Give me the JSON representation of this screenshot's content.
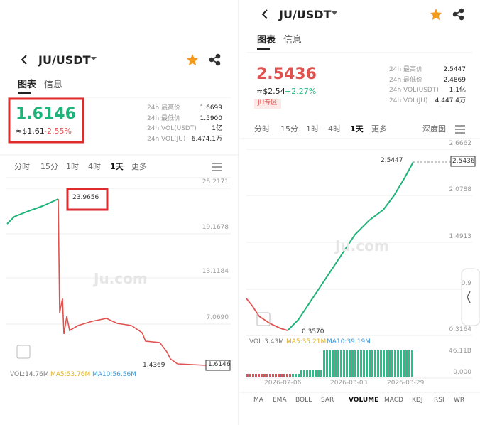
{
  "left": {
    "pair": "JU/USDT",
    "tabs": [
      "图表",
      "信息"
    ],
    "price": "1.6146",
    "usd": "≈$1.61",
    "change": "-2.55%",
    "stats": [
      {
        "label": "24h 最高价",
        "value": "1.6699"
      },
      {
        "label": "24h 最低价",
        "value": "1.5900"
      },
      {
        "label": "24h VOL(USDT)",
        "value": "1亿"
      },
      {
        "label": "24h VOL(JU)",
        "value": "6,474.1万"
      }
    ],
    "timeframes": [
      "分时",
      "15分",
      "1时",
      "4时",
      "1天",
      "更多"
    ],
    "axis": [
      "25.2171",
      "19.1678",
      "13.1184",
      "7.0690"
    ],
    "high_label": "23.9656",
    "low_label": "1.4369",
    "last_label": "1.6146",
    "watermark": "Ju.com",
    "volume": [
      "VOL:14.76M",
      "MA5:53.76M",
      "MA10:56.56M"
    ]
  },
  "right": {
    "pair": "JU/USDT",
    "tabs": [
      "图表",
      "信息"
    ],
    "price": "2.5436",
    "usd": "≈$2.54",
    "change": "+2.27%",
    "tag": "JU专区",
    "stats": [
      {
        "label": "24h 最高价",
        "value": "2.5447"
      },
      {
        "label": "24h 最低价",
        "value": "2.4869"
      },
      {
        "label": "24h VOL(USDT)",
        "value": "1.1亿"
      },
      {
        "label": "24h VOL(JU)",
        "value": "4,447.4万"
      }
    ],
    "timeframes": [
      "分时",
      "15分",
      "1时",
      "4时",
      "1天",
      "更多"
    ],
    "depth": "深度图",
    "axis": [
      "2.6662",
      "2.0788",
      "1.4913",
      "0.9",
      "0.3164"
    ],
    "high_label": "2.5447",
    "low_label": "0.3570",
    "last_label": "2.5436",
    "watermark": "Ju.com",
    "volume": [
      "VOL:3.43M",
      "MA5:35.21M",
      "MA10:39.19M"
    ],
    "vol_axis": [
      "46.11B",
      "0.000"
    ],
    "dates": [
      "2026-02-06",
      "2026-03-03",
      "2026-03-29"
    ],
    "indicators": [
      "MA",
      "EMA",
      "BOLL",
      "SAR",
      "VOLUME",
      "MACD",
      "KDJ",
      "RSI",
      "WR"
    ]
  }
}
